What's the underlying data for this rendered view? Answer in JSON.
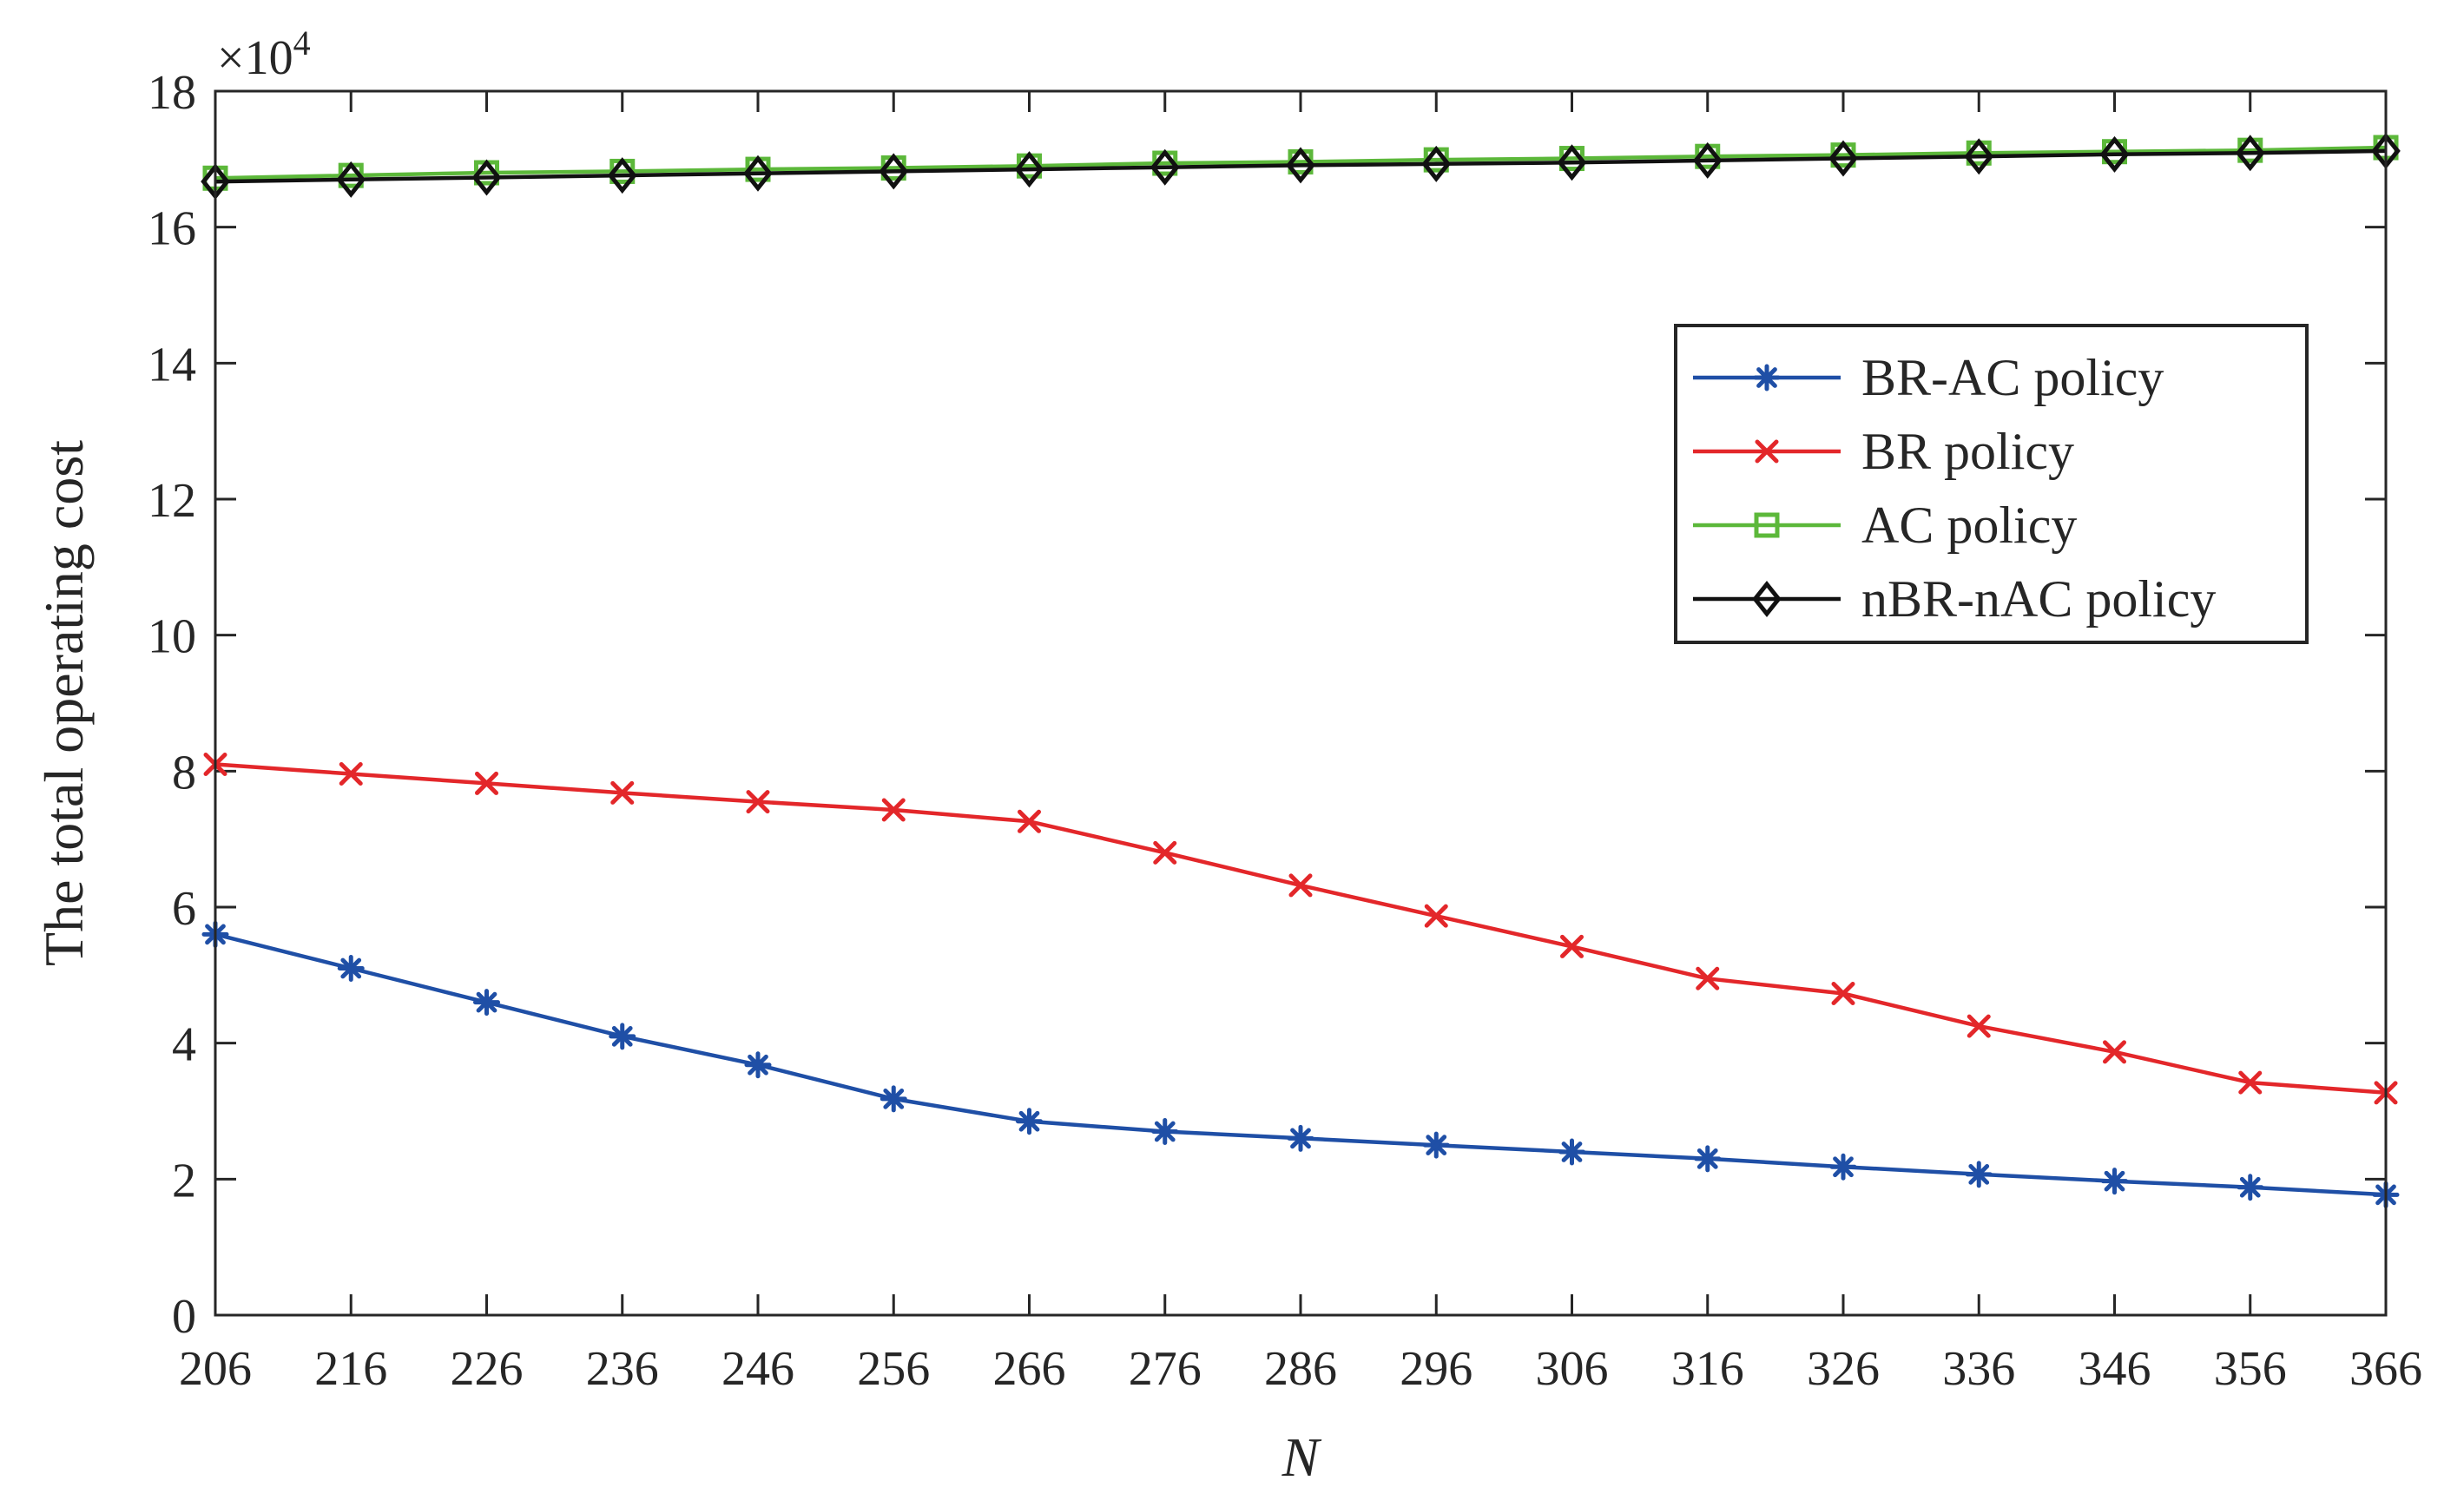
{
  "chart_data": {
    "type": "line",
    "title": "",
    "xlabel": "N",
    "ylabel": "The total operating cost",
    "y_multiplier_label": "×10",
    "y_multiplier_exponent": "4",
    "categories": [
      206,
      216,
      226,
      236,
      246,
      256,
      266,
      276,
      286,
      296,
      306,
      316,
      326,
      336,
      346,
      356,
      366
    ],
    "xlim": [
      206,
      366
    ],
    "ylim": [
      0,
      18
    ],
    "yticks": [
      0,
      2,
      4,
      6,
      8,
      10,
      12,
      14,
      16,
      18
    ],
    "legend_position": "upper-right",
    "series": [
      {
        "name": "BR-AC policy",
        "color": "#1f4fa6",
        "marker": "asterisk",
        "values": [
          5.6,
          5.1,
          4.6,
          4.1,
          3.68,
          3.18,
          2.85,
          2.7,
          2.6,
          2.5,
          2.4,
          2.3,
          2.18,
          2.07,
          1.97,
          1.88,
          1.77
        ]
      },
      {
        "name": "BR policy",
        "color": "#e3272a",
        "marker": "x",
        "values": [
          8.1,
          7.96,
          7.82,
          7.68,
          7.55,
          7.43,
          7.26,
          6.8,
          6.32,
          5.87,
          5.42,
          4.95,
          4.73,
          4.25,
          3.87,
          3.42,
          3.27
        ]
      },
      {
        "name": "AC policy",
        "color": "#5cb83a",
        "marker": "square",
        "values": [
          16.72,
          16.76,
          16.8,
          16.82,
          16.85,
          16.87,
          16.9,
          16.94,
          16.96,
          16.99,
          17.01,
          17.04,
          17.06,
          17.09,
          17.11,
          17.13,
          17.17
        ]
      },
      {
        "name": "nBR-nAC policy",
        "color": "#111111",
        "marker": "diamond",
        "values": [
          16.67,
          16.7,
          16.73,
          16.76,
          16.79,
          16.82,
          16.85,
          16.88,
          16.91,
          16.93,
          16.95,
          16.98,
          17.01,
          17.04,
          17.07,
          17.09,
          17.12
        ]
      }
    ]
  }
}
